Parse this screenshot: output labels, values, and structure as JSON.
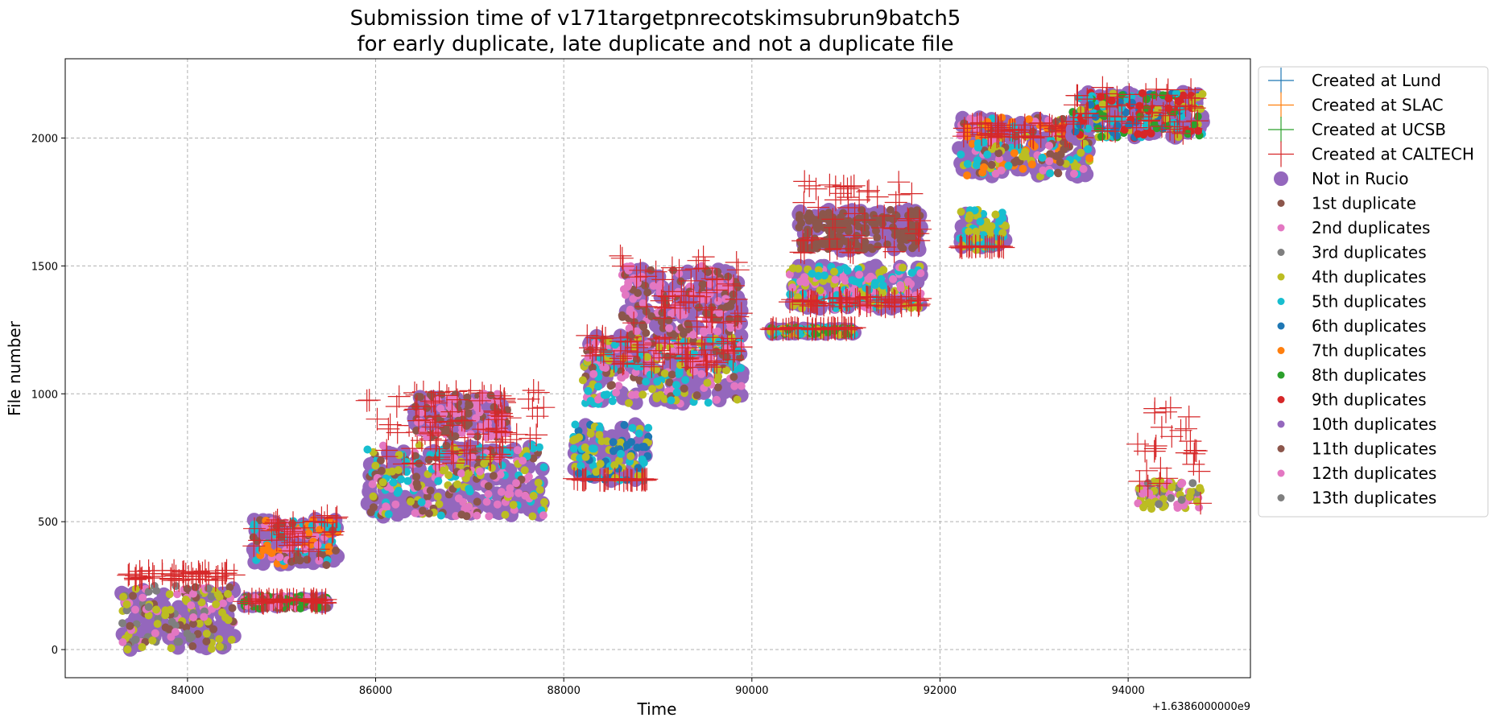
{
  "chart_data": {
    "type": "scatter",
    "title_line1": "Submission time of v171targetpnrecotskimsubrun9batch5",
    "title_line2": "for early duplicate, late duplicate and not a duplicate file",
    "xlabel": "Time",
    "ylabel": "File number",
    "x_offset_label": "+1.6386000000e9",
    "x_offset": 1638600000,
    "xlim": [
      82700,
      95300
    ],
    "ylim": [
      -110,
      2310
    ],
    "xticks": [
      84000,
      86000,
      88000,
      90000,
      92000,
      94000
    ],
    "xtick_labels": [
      "84000",
      "86000",
      "88000",
      "90000",
      "92000",
      "94000"
    ],
    "yticks": [
      0,
      500,
      1000,
      1500,
      2000
    ],
    "ytick_labels": [
      "0",
      "500",
      "1000",
      "1500",
      "2000"
    ],
    "grid": true,
    "legend_position": "outside-right",
    "colors": {
      "lund": "#1f77b4",
      "slac": "#ff7f0e",
      "ucsb": "#2ca02c",
      "caltech": "#d62728",
      "not_in_rucio": "#9467bd"
    },
    "legend": [
      {
        "label": "Created at Lund",
        "marker": "plus",
        "color": "#1f77b4"
      },
      {
        "label": "Created at SLAC",
        "marker": "plus",
        "color": "#ff7f0e"
      },
      {
        "label": "Created at UCSB",
        "marker": "plus",
        "color": "#2ca02c"
      },
      {
        "label": "Created at CALTECH",
        "marker": "plus",
        "color": "#d62728"
      },
      {
        "label": "Not in Rucio",
        "marker": "big-dot",
        "color": "#9467bd"
      },
      {
        "label": "1st duplicate",
        "marker": "dot",
        "color": "#8c564b"
      },
      {
        "label": "2nd duplicates",
        "marker": "dot",
        "color": "#e377c2"
      },
      {
        "label": "3rd duplicates",
        "marker": "dot",
        "color": "#7f7f7f"
      },
      {
        "label": "4th duplicates",
        "marker": "dot",
        "color": "#bcbd22"
      },
      {
        "label": "5th duplicates",
        "marker": "dot",
        "color": "#17becf"
      },
      {
        "label": "6th duplicates",
        "marker": "dot",
        "color": "#1f77b4"
      },
      {
        "label": "7th duplicates",
        "marker": "dot",
        "color": "#ff7f0e"
      },
      {
        "label": "8th duplicates",
        "marker": "dot",
        "color": "#2ca02c"
      },
      {
        "label": "9th duplicates",
        "marker": "dot",
        "color": "#d62728"
      },
      {
        "label": "10th duplicates",
        "marker": "dot",
        "color": "#9467bd"
      },
      {
        "label": "11th duplicates",
        "marker": "dot",
        "color": "#8c564b"
      },
      {
        "label": "12th duplicates",
        "marker": "dot",
        "color": "#e377c2"
      },
      {
        "label": "13th duplicates",
        "marker": "dot",
        "color": "#7f7f7f"
      }
    ],
    "point_clusters": [
      {
        "x0": 83300,
        "x1": 84500,
        "y0": 0,
        "y1": 250,
        "rucio": [
          0,
          240
        ],
        "dups": [
          "#7f7f7f",
          "#8c564b",
          "#e377c2",
          "#bcbd22"
        ],
        "caltech_y": [
          270,
          310
        ]
      },
      {
        "x0": 84600,
        "x1": 85500,
        "y0": 160,
        "y1": 210,
        "rucio": [
          170,
          200
        ],
        "dups": [
          "#2ca02c",
          "#e377c2",
          "#8c564b"
        ],
        "caltech_y": [
          180,
          200
        ]
      },
      {
        "x0": 84700,
        "x1": 85600,
        "y0": 330,
        "y1": 510,
        "rucio": [
          330,
          510
        ],
        "dups": [
          "#17becf",
          "#ff7f0e",
          "#8c564b",
          "#e377c2"
        ],
        "caltech_y": [
          380,
          530
        ]
      },
      {
        "x0": 85900,
        "x1": 87800,
        "y0": 520,
        "y1": 800,
        "rucio": [
          520,
          800
        ],
        "dups": [
          "#bcbd22",
          "#17becf",
          "#8c564b",
          "#e377c2"
        ],
        "caltech_y": [
          720,
          1020
        ]
      },
      {
        "x0": 86400,
        "x1": 87400,
        "y0": 830,
        "y1": 1000,
        "rucio": [
          860,
          990
        ],
        "dups": [
          "#8c564b",
          "#e377c2"
        ],
        "caltech_y": [
          830,
          1010
        ]
      },
      {
        "x0": 88100,
        "x1": 88900,
        "y0": 660,
        "y1": 880,
        "rucio": [
          660,
          880
        ],
        "dups": [
          "#bcbd22",
          "#1f77b4",
          "#17becf"
        ],
        "caltech_y": [
          660,
          670
        ]
      },
      {
        "x0": 88200,
        "x1": 89900,
        "y0": 960,
        "y1": 1230,
        "rucio": [
          960,
          1230
        ],
        "dups": [
          "#bcbd22",
          "#17becf",
          "#e377c2",
          "#8c564b"
        ],
        "caltech_y": [
          1100,
          1230
        ]
      },
      {
        "x0": 88600,
        "x1": 89900,
        "y0": 1230,
        "y1": 1500,
        "rucio": [
          1240,
          1490
        ],
        "dups": [
          "#8c564b",
          "#e377c2"
        ],
        "caltech_y": [
          1260,
          1540
        ]
      },
      {
        "x0": 90200,
        "x1": 91100,
        "y0": 1230,
        "y1": 1260,
        "rucio": [
          1235,
          1255
        ],
        "dups": [
          "#17becf",
          "#2ca02c",
          "#bcbd22"
        ],
        "caltech_y": [
          1250,
          1260
        ]
      },
      {
        "x0": 90400,
        "x1": 91800,
        "y0": 1330,
        "y1": 1500,
        "rucio": [
          1330,
          1500
        ],
        "dups": [
          "#bcbd22",
          "#17becf",
          "#e377c2"
        ],
        "caltech_y": [
          1340,
          1380
        ]
      },
      {
        "x0": 90500,
        "x1": 91800,
        "y0": 1560,
        "y1": 1720,
        "rucio": [
          1560,
          1720
        ],
        "dups": [
          "#8c564b"
        ],
        "caltech_y": [
          1550,
          1840
        ]
      },
      {
        "x0": 92200,
        "x1": 92700,
        "y0": 1560,
        "y1": 1720,
        "rucio": [
          1570,
          1710
        ],
        "dups": [
          "#17becf",
          "#bcbd22"
        ],
        "caltech_y": [
          1570,
          1580
        ]
      },
      {
        "x0": 92200,
        "x1": 93600,
        "y0": 1850,
        "y1": 2080,
        "rucio": [
          1850,
          2080
        ],
        "dups": [
          "#17becf",
          "#bcbd22",
          "#ff7f0e",
          "#e377c2",
          "#8c564b"
        ],
        "caltech_y": [
          2000,
          2060
        ]
      },
      {
        "x0": 93400,
        "x1": 94800,
        "y0": 2000,
        "y1": 2180,
        "rucio": [
          2000,
          2180
        ],
        "dups": [
          "#bcbd22",
          "#2ca02c",
          "#d62728",
          "#1f77b4",
          "#17becf"
        ],
        "caltech_y": [
          2000,
          2200
        ]
      },
      {
        "x0": 94100,
        "x1": 94800,
        "y0": 550,
        "y1": 660,
        "rucio": [],
        "dups": [
          "#bcbd22",
          "#7f7f7f",
          "#e377c2"
        ],
        "caltech_y": [
          560,
          960
        ]
      }
    ]
  }
}
